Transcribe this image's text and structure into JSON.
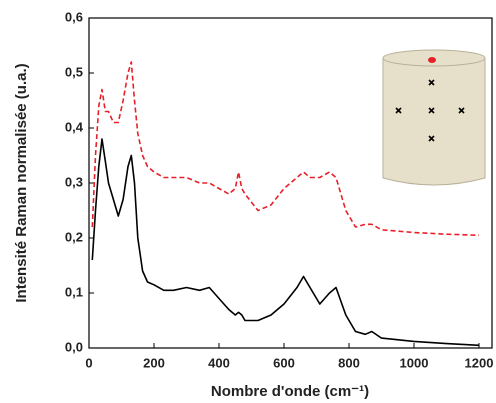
{
  "chart_data": {
    "type": "line",
    "xlabel": "Nombre d'onde (cm⁻¹)",
    "ylabel": "Intensité Raman normalisée (u.a.)",
    "x": [
      10,
      20,
      30,
      40,
      50,
      60,
      75,
      90,
      105,
      120,
      130,
      140,
      150,
      165,
      180,
      200,
      230,
      260,
      300,
      340,
      370,
      400,
      430,
      450,
      460,
      470,
      480,
      520,
      560,
      600,
      640,
      660,
      680,
      710,
      740,
      760,
      790,
      820,
      850,
      870,
      900,
      1000,
      1100,
      1200
    ],
    "series": [
      {
        "color": "#000000",
        "dash": false,
        "values": [
          0.16,
          0.25,
          0.33,
          0.38,
          0.34,
          0.3,
          0.27,
          0.24,
          0.27,
          0.33,
          0.35,
          0.3,
          0.2,
          0.14,
          0.12,
          0.115,
          0.105,
          0.105,
          0.11,
          0.105,
          0.11,
          0.09,
          0.07,
          0.06,
          0.065,
          0.06,
          0.05,
          0.05,
          0.06,
          0.08,
          0.11,
          0.13,
          0.11,
          0.08,
          0.1,
          0.11,
          0.06,
          0.03,
          0.025,
          0.03,
          0.018,
          0.012,
          0.008,
          0.005
        ]
      },
      {
        "color": "#e8202a",
        "dash": true,
        "values": [
          0.22,
          0.35,
          0.44,
          0.47,
          0.43,
          0.43,
          0.41,
          0.41,
          0.45,
          0.5,
          0.52,
          0.45,
          0.39,
          0.35,
          0.33,
          0.32,
          0.31,
          0.31,
          0.31,
          0.3,
          0.3,
          0.29,
          0.28,
          0.29,
          0.32,
          0.29,
          0.28,
          0.25,
          0.26,
          0.29,
          0.31,
          0.32,
          0.31,
          0.31,
          0.32,
          0.31,
          0.25,
          0.22,
          0.225,
          0.225,
          0.215,
          0.21,
          0.207,
          0.205
        ]
      }
    ],
    "xlim": [
      0,
      1240
    ],
    "xticks": [
      0,
      200,
      400,
      600,
      800,
      1000,
      1200
    ],
    "ylim": [
      0,
      0.6
    ],
    "yticks": [
      {
        "value": 0,
        "label": "0,0"
      },
      {
        "value": 0.1,
        "label": "0,1"
      },
      {
        "value": 0.2,
        "label": "0,2"
      },
      {
        "value": 0.3,
        "label": "0,3"
      },
      {
        "value": 0.4,
        "label": "0,4"
      },
      {
        "value": 0.5,
        "label": "0,5"
      },
      {
        "value": 0.6,
        "label": "0,6"
      }
    ]
  }
}
